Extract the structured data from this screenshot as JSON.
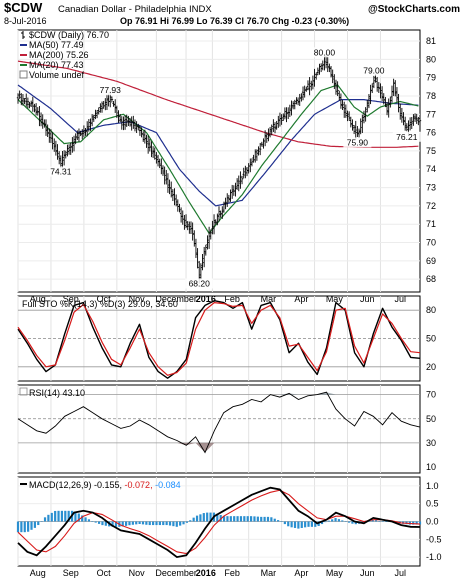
{
  "header": {
    "title": "$CDW",
    "subtitle": "Canadian Dollar - Philadelphia INDX",
    "brand": "@StockCharts.com",
    "date": "8-Jul-2016",
    "quote": "Op 76.91  Hi 76.99  Lo 76.39  Cl 76.70  Chg -0.23 (-0.30%)",
    "chg_arrow": "▼"
  },
  "price_legend": [
    {
      "label": "$CDW (Daily) 76.70",
      "color": "#000000",
      "kind": "bar"
    },
    {
      "label": "MA(50) 77.49",
      "color": "#1f2f8f",
      "kind": "line"
    },
    {
      "label": "MA(200) 75.26",
      "color": "#c0203a",
      "kind": "line"
    },
    {
      "label": "MA(20) 77.43",
      "color": "#1f7a2f",
      "kind": "line"
    },
    {
      "label": "Volume undef",
      "color": "#7f7f7f",
      "kind": "box"
    }
  ],
  "sto_legend": {
    "label": "Full STO %K(14,3) %D(3) 29.09, 34.60"
  },
  "rsi_legend": {
    "label": "RSI(14) 43.10"
  },
  "macd_legend": {
    "prefix": "MACD(12,26,9) -0.155,",
    "signal": "-0.072,",
    "hist": "-0.084",
    "signal_color": "#d81b1b",
    "hist_color": "#1e90ff"
  },
  "x_axis": {
    "months": [
      {
        "label": "Aug",
        "m": 0.6
      },
      {
        "label": "Sep",
        "m": 1.6
      },
      {
        "label": "Oct",
        "m": 2.6
      },
      {
        "label": "Nov",
        "m": 3.6
      },
      {
        "label": "December",
        "m": 4.8
      },
      {
        "label": "2016",
        "m": 5.7,
        "bold": true
      },
      {
        "label": "Feb",
        "m": 6.5
      },
      {
        "label": "Mar",
        "m": 7.6
      },
      {
        "label": "Apr",
        "m": 8.6
      },
      {
        "label": "May",
        "m": 9.6
      },
      {
        "label": "Jun",
        "m": 10.6
      },
      {
        "label": "Jul",
        "m": 11.6
      }
    ]
  },
  "chart_data": [
    {
      "type": "ohlc",
      "panel": "price",
      "title": "$CDW Canadian Dollar - Philadelphia INDX",
      "ylim": [
        67.3,
        81.6
      ],
      "yticks": [
        68,
        69,
        70,
        71,
        72,
        73,
        74,
        75,
        76,
        77,
        78,
        79,
        80,
        81
      ],
      "price_keypoints": [
        [
          0,
          78.0
        ],
        [
          0.5,
          77.4
        ],
        [
          1.0,
          75.6
        ],
        [
          1.3,
          74.31
        ],
        [
          1.7,
          75.6
        ],
        [
          2.1,
          76.3
        ],
        [
          2.4,
          77.2
        ],
        [
          2.8,
          77.93
        ],
        [
          3.1,
          76.6
        ],
        [
          3.5,
          76.5
        ],
        [
          3.9,
          75.5
        ],
        [
          4.3,
          74.2
        ],
        [
          4.7,
          72.5
        ],
        [
          5.0,
          71.2
        ],
        [
          5.3,
          70.5
        ],
        [
          5.5,
          68.2
        ],
        [
          5.8,
          70.5
        ],
        [
          6.0,
          71.2
        ],
        [
          6.4,
          72.5
        ],
        [
          6.8,
          73.6
        ],
        [
          7.2,
          74.8
        ],
        [
          7.6,
          76.0
        ],
        [
          8.0,
          76.8
        ],
        [
          8.4,
          77.6
        ],
        [
          8.7,
          78.3
        ],
        [
          9.0,
          79.0
        ],
        [
          9.3,
          80.0
        ],
        [
          9.5,
          79.2
        ],
        [
          9.8,
          77.6
        ],
        [
          10.1,
          76.5
        ],
        [
          10.3,
          75.9
        ],
        [
          10.6,
          77.5
        ],
        [
          10.8,
          79.0
        ],
        [
          11.0,
          78.2
        ],
        [
          11.2,
          77.2
        ],
        [
          11.4,
          78.6
        ],
        [
          11.6,
          77.0
        ],
        [
          11.8,
          76.21
        ],
        [
          12.0,
          76.8
        ],
        [
          12.2,
          76.7
        ]
      ],
      "annotations": [
        {
          "text": "74.31",
          "x": 1.3,
          "y": 74.31,
          "pos": "below"
        },
        {
          "text": "77.93",
          "x": 2.8,
          "y": 77.93,
          "pos": "above"
        },
        {
          "text": "68.20",
          "x": 5.5,
          "y": 68.2,
          "pos": "below"
        },
        {
          "text": "80.00",
          "x": 9.3,
          "y": 80.0,
          "pos": "above"
        },
        {
          "text": "75.90",
          "x": 10.3,
          "y": 75.9,
          "pos": "below"
        },
        {
          "text": "79.00",
          "x": 10.8,
          "y": 79.0,
          "pos": "above"
        },
        {
          "text": "76.21",
          "x": 11.8,
          "y": 76.21,
          "pos": "below"
        }
      ],
      "series": [
        {
          "name": "MA(50)",
          "keypoints": [
            [
              0,
              78.6
            ],
            [
              1.0,
              77.3
            ],
            [
              1.8,
              76.0
            ],
            [
              2.6,
              76.4
            ],
            [
              3.4,
              76.6
            ],
            [
              4.2,
              76.0
            ],
            [
              4.9,
              74.0
            ],
            [
              5.5,
              72.8
            ],
            [
              6.0,
              72.0
            ],
            [
              6.8,
              72.3
            ],
            [
              7.5,
              73.8
            ],
            [
              8.3,
              75.6
            ],
            [
              9.0,
              77.0
            ],
            [
              9.8,
              77.8
            ],
            [
              10.5,
              77.8
            ],
            [
              11.3,
              77.6
            ],
            [
              12.2,
              77.49
            ]
          ]
        },
        {
          "name": "MA(200)",
          "keypoints": [
            [
              0,
              79.9
            ],
            [
              1.5,
              79.5
            ],
            [
              3.0,
              78.8
            ],
            [
              4.5,
              77.8
            ],
            [
              6.0,
              76.9
            ],
            [
              7.5,
              76.0
            ],
            [
              8.5,
              75.5
            ],
            [
              9.5,
              75.25
            ],
            [
              10.5,
              75.2
            ],
            [
              11.5,
              75.2
            ],
            [
              12.2,
              75.26
            ]
          ]
        },
        {
          "name": "MA(20)",
          "keypoints": [
            [
              0,
              77.8
            ],
            [
              0.7,
              76.6
            ],
            [
              1.4,
              75.4
            ],
            [
              1.9,
              75.5
            ],
            [
              2.6,
              76.7
            ],
            [
              3.2,
              77.0
            ],
            [
              3.9,
              76.0
            ],
            [
              4.6,
              74.0
            ],
            [
              5.2,
              72.2
            ],
            [
              5.8,
              70.5
            ],
            [
              6.2,
              71.4
            ],
            [
              6.8,
              72.6
            ],
            [
              7.4,
              74.2
            ],
            [
              8.0,
              75.6
            ],
            [
              8.6,
              77.0
            ],
            [
              9.2,
              78.3
            ],
            [
              9.7,
              78.6
            ],
            [
              10.2,
              77.4
            ],
            [
              10.6,
              76.9
            ],
            [
              11.0,
              77.4
            ],
            [
              11.6,
              77.7
            ],
            [
              12.2,
              77.43
            ]
          ]
        }
      ]
    },
    {
      "type": "line",
      "panel": "sto",
      "ylim": [
        5,
        95
      ],
      "yticks": [
        20,
        50,
        80
      ],
      "series": [
        {
          "name": "%K",
          "values": [
            60,
            45,
            28,
            15,
            22,
            55,
            85,
            88,
            62,
            40,
            22,
            20,
            45,
            65,
            30,
            15,
            8,
            15,
            28,
            72,
            85,
            90,
            88,
            82,
            88,
            60,
            85,
            88,
            70,
            35,
            45,
            25,
            12,
            40,
            88,
            80,
            35,
            20,
            55,
            82,
            62,
            48,
            30,
            29
          ]
        },
        {
          "name": "%D",
          "values": [
            62,
            48,
            32,
            20,
            22,
            48,
            78,
            86,
            68,
            46,
            28,
            22,
            40,
            60,
            35,
            20,
            11,
            14,
            24,
            60,
            80,
            88,
            87,
            84,
            85,
            66,
            80,
            85,
            72,
            42,
            44,
            30,
            16,
            36,
            80,
            82,
            42,
            24,
            50,
            76,
            66,
            50,
            36,
            35
          ]
        }
      ]
    },
    {
      "type": "line",
      "panel": "rsi",
      "ylim": [
        5,
        78
      ],
      "yticks": [
        10,
        30,
        50,
        70
      ],
      "series": [
        {
          "name": "RSI(14)",
          "values": [
            50,
            45,
            40,
            38,
            44,
            52,
            56,
            60,
            55,
            50,
            46,
            42,
            44,
            49,
            45,
            40,
            35,
            32,
            28,
            35,
            22,
            40,
            55,
            60,
            62,
            66,
            64,
            70,
            68,
            71,
            66,
            69,
            70,
            72,
            58,
            50,
            44,
            56,
            52,
            45,
            55,
            48,
            45,
            43.1
          ]
        }
      ]
    },
    {
      "type": "line+bar",
      "panel": "macd",
      "ylim": [
        -1.25,
        1.25
      ],
      "yticks": [
        1.0,
        0.5,
        0.0,
        -0.5,
        -1.0
      ],
      "series": [
        {
          "name": "MACD",
          "values": [
            -0.6,
            -0.85,
            -0.95,
            -0.7,
            -0.4,
            -0.1,
            0.25,
            0.3,
            0.25,
            0.1,
            -0.1,
            -0.25,
            -0.3,
            -0.35,
            -0.5,
            -0.65,
            -0.8,
            -1.0,
            -0.95,
            -0.6,
            -0.2,
            0.15,
            0.3,
            0.45,
            0.6,
            0.75,
            0.85,
            0.95,
            0.9,
            0.6,
            0.3,
            0.15,
            -0.05,
            0.05,
            0.25,
            0.15,
            0.0,
            -0.05,
            0.1,
            0.05,
            0.0,
            -0.1,
            -0.15,
            -0.155
          ]
        },
        {
          "name": "Signal",
          "values": [
            -0.3,
            -0.55,
            -0.8,
            -0.85,
            -0.7,
            -0.4,
            -0.05,
            0.15,
            0.25,
            0.2,
            0.05,
            -0.1,
            -0.2,
            -0.28,
            -0.4,
            -0.55,
            -0.7,
            -0.85,
            -0.9,
            -0.75,
            -0.45,
            -0.1,
            0.15,
            0.3,
            0.45,
            0.6,
            0.72,
            0.82,
            0.88,
            0.75,
            0.5,
            0.3,
            0.1,
            0.05,
            0.15,
            0.15,
            0.08,
            0.0,
            0.05,
            0.05,
            0.02,
            -0.04,
            -0.06,
            -0.072
          ]
        }
      ]
    }
  ]
}
